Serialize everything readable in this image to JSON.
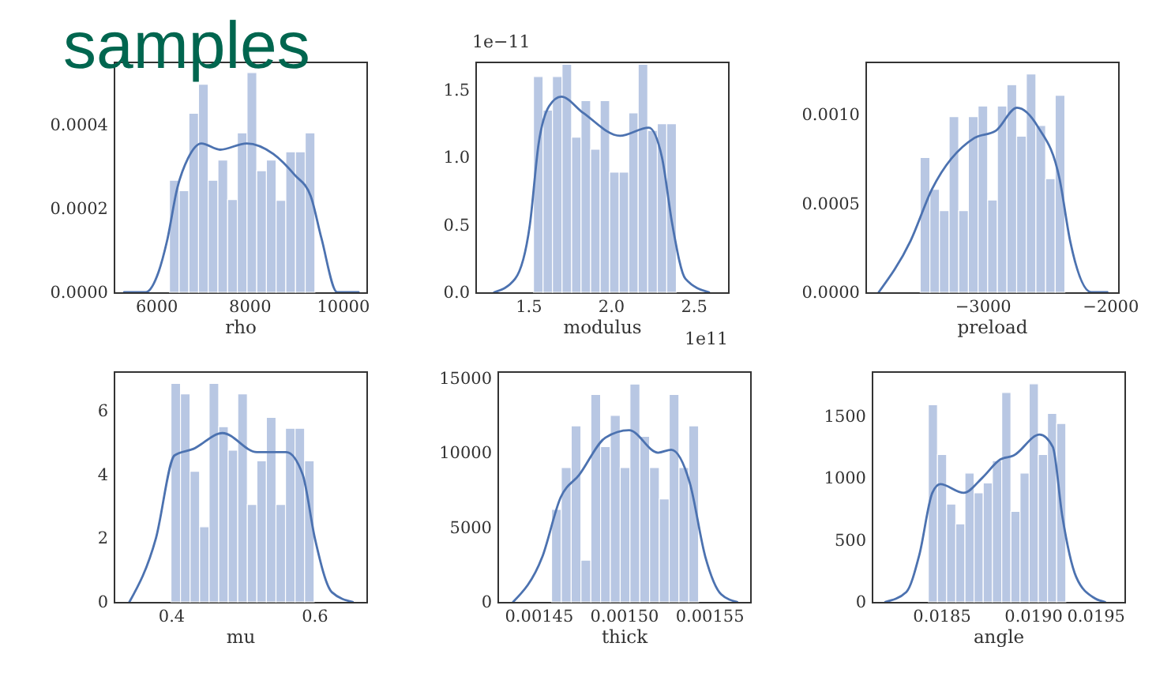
{
  "chart_data": [
    {
      "type": "histogram",
      "title": "samples",
      "xlabel": "rho",
      "xlim": [
        5090,
        10510
      ],
      "ylim": [
        0,
        0.00055
      ],
      "xticks": [
        6000,
        8000,
        10000
      ],
      "yticks": [
        {
          "value": 0,
          "label": "0.0000"
        },
        {
          "value": 0.0002,
          "label": "0.0002"
        },
        {
          "value": 0.0004,
          "label": "0.0004"
        }
      ],
      "color": "#b8c7e3",
      "bins": [
        6286,
        6494,
        6702,
        6910,
        7118,
        7326,
        7534,
        7742,
        7950,
        8158,
        8366,
        8574,
        8782,
        8990,
        9198,
        9406
      ],
      "values": [
        0.000267,
        0.000242,
        0.000427,
        0.000496,
        0.000267,
        0.000315,
        0.000221,
        0.00038,
        0.000524,
        0.00029,
        0.000315,
        0.000219,
        0.000335,
        0.000335,
        0.00038
      ],
      "series": [
        {
          "type": "line",
          "color": "#4c72b0",
          "x": [
            5314,
            5771,
            6057,
            6229,
            6457,
            6686,
            6971,
            7371,
            7943,
            8514,
            8971,
            9314,
            9543,
            9886,
            10343
          ],
          "values": [
            0,
            0,
            5e-05,
            0.00012,
            0.00025,
            0.00032,
            0.000355,
            0.00034,
            0.000355,
            0.00033,
            0.00028,
            0.00023,
            0.00013,
            0,
            0
          ]
        }
      ]
    },
    {
      "type": "histogram",
      "xlabel": "modulus",
      "annotations": [
        "1e−11",
        "1e11"
      ],
      "xlim": [
        1.18,
        2.71
      ],
      "ylim": [
        0,
        1.71
      ],
      "xticks": [
        1.5,
        {
          "value": 2,
          "label": "2.0"
        },
        2.5
      ],
      "yticks": [
        {
          "value": 0,
          "label": "0.0"
        },
        0.5,
        {
          "value": 1,
          "label": "1.0"
        },
        1.5
      ],
      "color": "#b8c7e3",
      "bins": [
        1.532,
        1.59,
        1.647,
        1.705,
        1.763,
        1.82,
        1.878,
        1.936,
        1.993,
        2.051,
        2.109,
        2.166,
        2.224,
        2.282,
        2.339,
        2.397
      ],
      "values": [
        1.6,
        1.35,
        1.6,
        1.69,
        1.15,
        1.42,
        1.06,
        1.42,
        0.89,
        0.89,
        1.33,
        1.69,
        1.2,
        1.25,
        1.25
      ],
      "series": [
        {
          "type": "line",
          "color": "#4c72b0",
          "x": [
            1.294,
            1.421,
            1.51,
            1.563,
            1.627,
            1.7,
            1.833,
            2.056,
            2.23,
            2.31,
            2.373,
            2.452,
            2.595
          ],
          "values": [
            0,
            0.1,
            0.5,
            1.1,
            1.38,
            1.45,
            1.33,
            1.16,
            1.22,
            1,
            0.5,
            0.1,
            0
          ]
        }
      ]
    },
    {
      "type": "histogram",
      "xlabel": "preload",
      "xlim": [
        -3917,
        -1937
      ],
      "ylim": [
        0,
        0.0013
      ],
      "xticks": [
        {
          "value": -3000,
          "label": "−3000"
        },
        {
          "value": -2000,
          "label": "−2000"
        }
      ],
      "yticks": [
        {
          "value": 0,
          "label": "0.0000"
        },
        {
          "value": 0.0005,
          "label": "0.0005"
        },
        {
          "value": 0.001,
          "label": "0.0010"
        }
      ],
      "color": "#b8c7e3",
      "bins": [
        -3488,
        -3412,
        -3337,
        -3261,
        -3186,
        -3110,
        -3034,
        -2959,
        -2883,
        -2808,
        -2732,
        -2656,
        -2581,
        -2505,
        -2430,
        -2354
      ],
      "values": [
        0.00076,
        0.00058,
        0.00046,
        0.00099,
        0.00046,
        0.00099,
        0.00105,
        0.00052,
        0.00105,
        0.00117,
        0.00088,
        0.00123,
        0.00094,
        0.00064,
        0.00111
      ],
      "series": [
        {
          "type": "line",
          "color": "#4c72b0",
          "x": [
            -3813,
            -3563,
            -3396,
            -3063,
            -2896,
            -2729,
            -2563,
            -2396,
            -2313,
            -2146,
            -2021
          ],
          "values": [
            0,
            0.00029,
            0.00058,
            0.00087,
            0.00091,
            0.00104,
            0.00093,
            0.00064,
            0.00029,
            0,
            0
          ]
        }
      ]
    },
    {
      "type": "histogram",
      "xlabel": "mu",
      "xlim": [
        0.32,
        0.673
      ],
      "ylim": [
        0,
        7.24
      ],
      "xticks": [
        0.4,
        0.6
      ],
      "yticks": [
        0,
        2,
        4,
        6
      ],
      "color": "#b8c7e3",
      "bins": [
        0.4,
        0.4133,
        0.4267,
        0.44,
        0.4533,
        0.4667,
        0.48,
        0.4933,
        0.5067,
        0.52,
        0.5333,
        0.5467,
        0.56,
        0.5733,
        0.5867,
        0.6
      ],
      "values": [
        6.86,
        6.53,
        4.1,
        2.36,
        6.86,
        5.5,
        4.76,
        6.53,
        3.06,
        4.43,
        5.79,
        3.06,
        5.45,
        5.45,
        4.43
      ],
      "series": [
        {
          "type": "line",
          "color": "#4c72b0",
          "x": [
            0.342,
            0.379,
            0.405,
            0.431,
            0.472,
            0.52,
            0.561,
            0.584,
            0.601,
            0.625,
            0.654
          ],
          "values": [
            0,
            2,
            4.6,
            4.8,
            5.3,
            4.7,
            4.7,
            4,
            2,
            0.3,
            0
          ]
        }
      ]
    },
    {
      "type": "histogram",
      "xlabel": "thick",
      "xlim": [
        0.001426,
        0.001574
      ],
      "ylim": [
        0,
        15455
      ],
      "xticks": [
        0.00145,
        {
          "value": 0.0015,
          "label": "0.00150"
        },
        0.00155
      ],
      "yticks": [
        0,
        5000,
        10000,
        15000
      ],
      "color": "#b8c7e3",
      "bins": [
        0.0014577,
        0.0014634,
        0.0014692,
        0.0014749,
        0.0014807,
        0.0014864,
        0.0014921,
        0.0014979,
        0.0015036,
        0.0015094,
        0.0015151,
        0.0015208,
        0.0015266,
        0.0015323,
        0.0015381,
        0.0015438
      ],
      "values": [
        6200,
        9000,
        11800,
        2800,
        13900,
        10400,
        12500,
        9000,
        14600,
        11100,
        9000,
        6900,
        13900,
        9000,
        11800
      ],
      "series": [
        {
          "type": "line",
          "color": "#4c72b0",
          "x": [
            0.0014352,
            0.0014522,
            0.001463,
            0.0014738,
            0.0014892,
            0.0015031,
            0.0015201,
            0.0015278,
            0.0015386,
            0.0015478,
            0.0015571,
            0.0015664
          ],
          "values": [
            0,
            3000,
            7000,
            8500,
            11000,
            11500,
            10000,
            10200,
            8000,
            3000,
            500,
            0
          ]
        }
      ]
    },
    {
      "type": "histogram",
      "xlabel": "angle",
      "xlim": [
        0.01812,
        0.0195
      ],
      "ylim": [
        0,
        1861
      ],
      "xticks": [
        0.0185,
        {
          "value": 0.019,
          "label": "0.0190"
        },
        0.0195
      ],
      "yticks": [
        0,
        500,
        1000,
        1500
      ],
      "color": "#b8c7e3",
      "bins": [
        0.018429,
        0.018479,
        0.018529,
        0.018579,
        0.018629,
        0.018679,
        0.018729,
        0.018779,
        0.01883,
        0.01888,
        0.01893,
        0.01898,
        0.01903,
        0.01908,
        0.01913,
        0.01918
      ],
      "values": [
        1590,
        1190,
        790,
        630,
        1040,
        880,
        960,
        1140,
        1690,
        730,
        1040,
        1760,
        1190,
        1520,
        1440
      ],
      "series": [
        {
          "type": "line",
          "color": "#4c72b0",
          "x": [
            0.018194,
            0.018309,
            0.01838,
            0.018451,
            0.018494,
            0.018623,
            0.018723,
            0.018823,
            0.018894,
            0.019037,
            0.019109,
            0.01916,
            0.019237,
            0.019337,
            0.019394
          ],
          "values": [
            0,
            80,
            380,
            880,
            950,
            880,
            1000,
            1150,
            1180,
            1350,
            1250,
            700,
            200,
            30,
            0
          ]
        }
      ]
    }
  ]
}
